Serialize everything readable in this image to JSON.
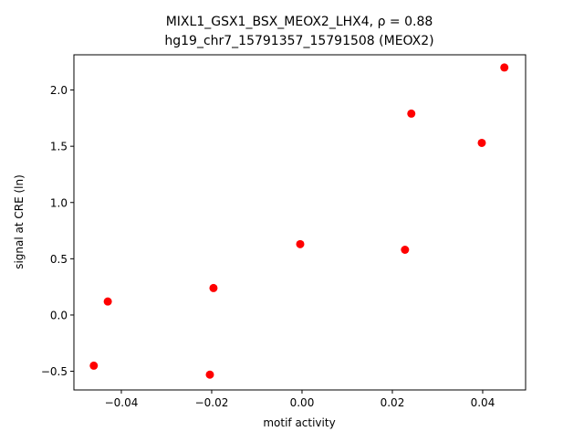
{
  "chart_data": {
    "type": "scatter",
    "title_line1": "MIXL1_GSX1_BSX_MEOX2_LHX4, ρ = 0.88",
    "title_line2": "hg19_chr7_15791357_15791508 (MEOX2)",
    "xlabel": "motif activity",
    "ylabel": "signal at CRE (ln)",
    "xlim": [
      -0.0505,
      0.0495
    ],
    "ylim": [
      -0.666,
      2.313
    ],
    "xticks": [
      -0.04,
      -0.02,
      0.0,
      0.02,
      0.04
    ],
    "xtick_labels": [
      "−0.04",
      "−0.02",
      "0.00",
      "0.02",
      "0.04"
    ],
    "yticks": [
      -0.5,
      0.0,
      0.5,
      1.0,
      1.5,
      2.0
    ],
    "ytick_labels": [
      "−0.5",
      "0.0",
      "0.5",
      "1.0",
      "1.5",
      "2.0"
    ],
    "grid": false,
    "marker_color": "#ff0000",
    "points": [
      {
        "x": 0.0448,
        "y": 2.2
      },
      {
        "x": 0.0242,
        "y": 1.79
      },
      {
        "x": 0.0398,
        "y": 1.53
      },
      {
        "x": 0.0228,
        "y": 0.58
      },
      {
        "x": -0.0004,
        "y": 0.63
      },
      {
        "x": -0.0196,
        "y": 0.24
      },
      {
        "x": -0.043,
        "y": 0.12
      },
      {
        "x": -0.0461,
        "y": -0.45
      },
      {
        "x": -0.0204,
        "y": -0.53
      }
    ]
  }
}
